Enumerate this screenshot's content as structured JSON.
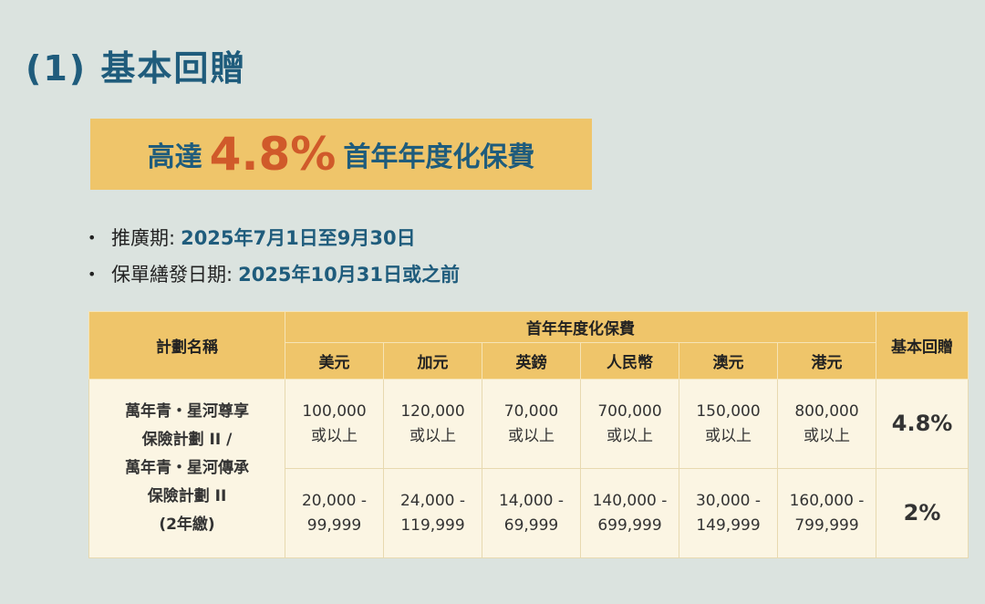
{
  "title": "(1) 基本回贈",
  "banner": {
    "prefix": "高達",
    "percent": "4.8%",
    "suffix": "首年年度化保費"
  },
  "bullets": [
    {
      "label": "推廣期:",
      "value": "2025年7月1日至9月30日"
    },
    {
      "label": "保單繕發日期:",
      "value": "2025年10月31日或之前"
    }
  ],
  "table": {
    "plan_header": "計劃名稱",
    "premium_header": "首年年度化保費",
    "reward_header": "基本回贈",
    "currencies": [
      "美元",
      "加元",
      "英鎊",
      "人民幣",
      "澳元",
      "港元"
    ],
    "plan_lines": [
      "萬年青・星河尊享",
      "保險計劃 II /",
      "萬年青・星河傳承",
      "保險計劃 II",
      "(2年繳)"
    ],
    "rows": [
      {
        "cells": [
          [
            "100,000",
            "或以上"
          ],
          [
            "120,000",
            "或以上"
          ],
          [
            "70,000",
            "或以上"
          ],
          [
            "700,000",
            "或以上"
          ],
          [
            "150,000",
            "或以上"
          ],
          [
            "800,000",
            "或以上"
          ]
        ],
        "reward": "4.8%"
      },
      {
        "cells": [
          [
            "20,000 -",
            "99,999"
          ],
          [
            "24,000 -",
            "119,999"
          ],
          [
            "14,000 -",
            "69,999"
          ],
          [
            "140,000 -",
            "699,999"
          ],
          [
            "30,000 -",
            "149,999"
          ],
          [
            "160,000 -",
            "799,999"
          ]
        ],
        "reward": "2%"
      }
    ]
  }
}
